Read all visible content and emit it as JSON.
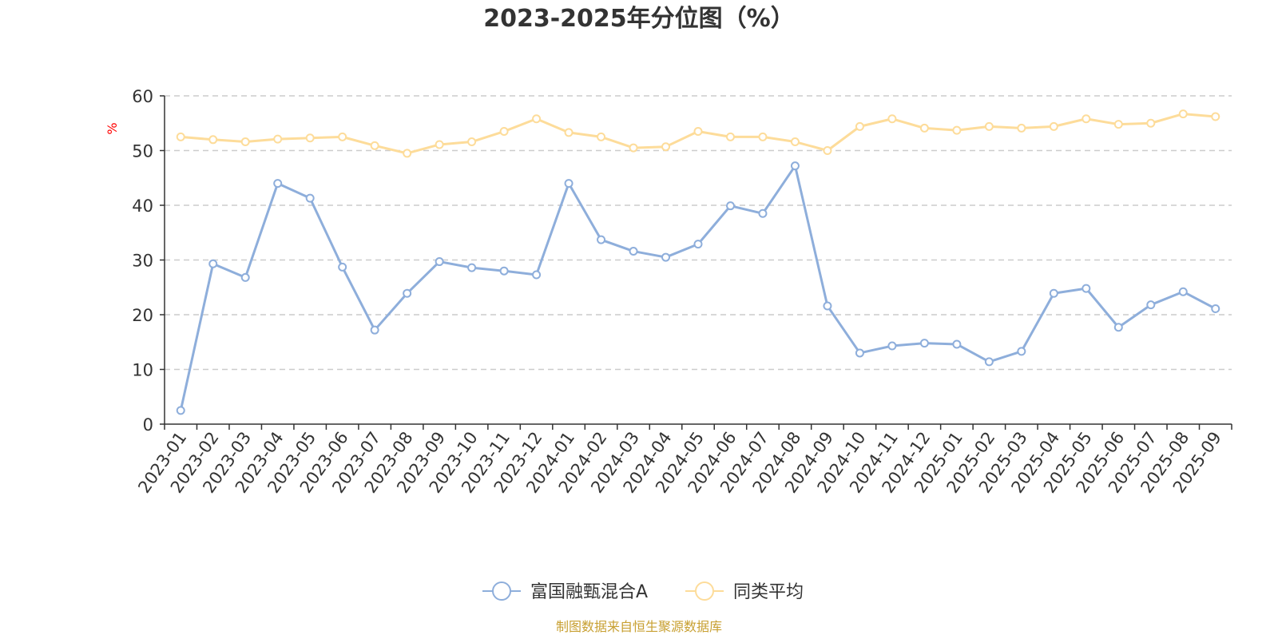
{
  "chart_data": {
    "type": "line",
    "title": "2023-2025年分位图（%）",
    "ylabel": "%",
    "ylim": [
      0,
      60
    ],
    "yticks": [
      0,
      10,
      20,
      30,
      40,
      50,
      60
    ],
    "grid": true,
    "legend_placement": "bottom-center",
    "categories": [
      "2023-01",
      "2023-02",
      "2023-03",
      "2023-04",
      "2023-05",
      "2023-06",
      "2023-07",
      "2023-08",
      "2023-09",
      "2023-10",
      "2023-11",
      "2023-12",
      "2024-01",
      "2024-02",
      "2024-03",
      "2024-04",
      "2024-05",
      "2024-06",
      "2024-07",
      "2024-08",
      "2024-09",
      "2024-10",
      "2024-11",
      "2024-12",
      "2025-01",
      "2025-02",
      "2025-03",
      "2025-04",
      "2025-05",
      "2025-06",
      "2025-07",
      "2025-08",
      "2025-09"
    ],
    "series": [
      {
        "name": "富国融甄混合A",
        "color": "#8eaedb",
        "values": [
          2.5,
          29.3,
          26.8,
          44.0,
          41.3,
          28.7,
          17.2,
          23.9,
          29.7,
          28.6,
          28.0,
          27.3,
          44.0,
          33.7,
          31.6,
          30.5,
          32.9,
          39.9,
          38.5,
          47.2,
          21.6,
          13.0,
          14.3,
          14.8,
          14.6,
          11.4,
          13.3,
          23.9,
          24.8,
          17.7,
          21.8,
          24.2,
          21.1
        ]
      },
      {
        "name": "同类平均",
        "color": "#fddc9a",
        "values": [
          52.5,
          52.0,
          51.6,
          52.1,
          52.3,
          52.5,
          50.9,
          49.5,
          51.1,
          51.6,
          53.5,
          55.8,
          53.3,
          52.5,
          50.5,
          50.7,
          53.5,
          52.5,
          52.5,
          51.6,
          50.0,
          54.4,
          55.8,
          54.1,
          53.7,
          54.4,
          54.1,
          54.4,
          55.8,
          54.8,
          55.0,
          56.7,
          56.2
        ]
      }
    ],
    "source": "制图数据来自恒生聚源数据库"
  }
}
